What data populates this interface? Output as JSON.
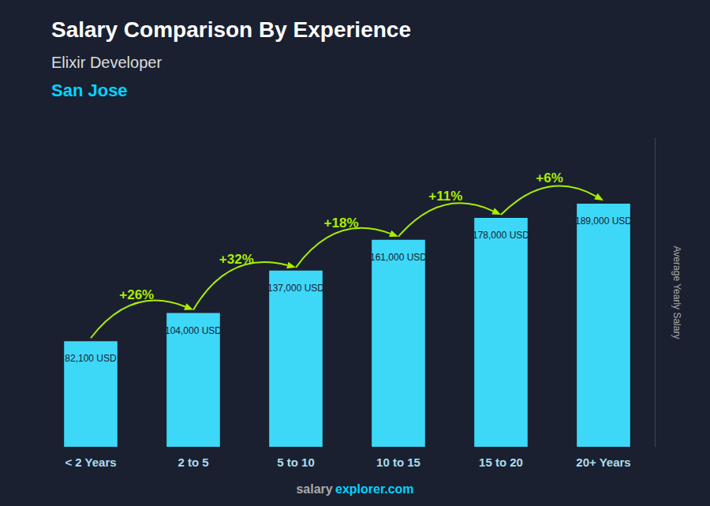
{
  "chart_data": {
    "type": "bar",
    "title": "Salary Comparison By Experience",
    "subtitle": [
      "Elixir Developer",
      "San Jose"
    ],
    "ylabel": "Average Yearly Salary",
    "categories": [
      "< 2 Years",
      "2 to 5",
      "5 to 10",
      "10 to 15",
      "15 to 20",
      "20+ Years"
    ],
    "values": [
      82100,
      104000,
      137000,
      161000,
      178000,
      189000
    ],
    "value_labels": [
      "82,100 USD",
      "104,000 USD",
      "137,000 USD",
      "161,000 USD",
      "178,000 USD",
      "189,000 USD"
    ],
    "data_labels": true,
    "color": "#3dd8f8",
    "annotations": [
      "+26%",
      "+32%",
      "+18%",
      "+11%",
      "+6%"
    ],
    "footer": [
      "salary",
      "explorer.com"
    ],
    "ylim": [
      0,
      240000
    ],
    "grid": false,
    "tick_labels": "x"
  }
}
